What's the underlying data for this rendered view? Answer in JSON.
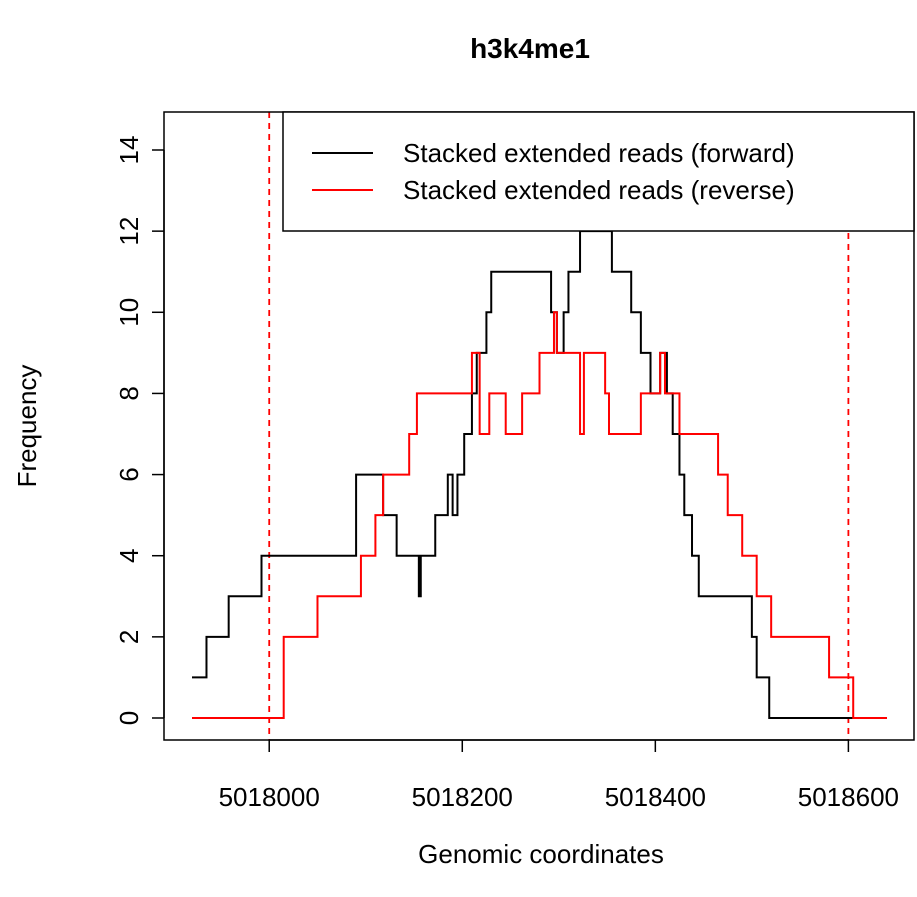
{
  "chart_data": {
    "type": "line",
    "title": "h3k4me1",
    "xlabel": "Genomic coordinates",
    "ylabel": "Frequency",
    "xlim": [
      5017920,
      5018640
    ],
    "ylim": [
      0,
      14
    ],
    "x_ticks": [
      5018000,
      5018200,
      5018400,
      5018600
    ],
    "x_tick_labels": [
      "5018000",
      "5018200",
      "5018400",
      "5018600"
    ],
    "y_ticks": [
      0,
      2,
      4,
      6,
      8,
      10,
      12,
      14
    ],
    "y_tick_labels": [
      "0",
      "2",
      "4",
      "6",
      "8",
      "10",
      "12",
      "14"
    ],
    "grid": false,
    "legend_position": "top-right",
    "vlines": [
      {
        "x": 5018000,
        "color": "#ff0000",
        "style": "dashed"
      },
      {
        "x": 5018600,
        "color": "#ff0000",
        "style": "dashed"
      }
    ],
    "series": [
      {
        "name": "Stacked extended reads (forward)",
        "color": "#000000",
        "step": true,
        "points": [
          [
            5017920,
            1
          ],
          [
            5017935,
            2
          ],
          [
            5017958,
            3
          ],
          [
            5017992,
            4
          ],
          [
            5018090,
            6
          ],
          [
            5018118,
            5
          ],
          [
            5018132,
            4
          ],
          [
            5018155,
            3
          ],
          [
            5018157,
            4
          ],
          [
            5018172,
            5
          ],
          [
            5018185,
            6
          ],
          [
            5018190,
            5
          ],
          [
            5018195,
            6
          ],
          [
            5018202,
            7
          ],
          [
            5018210,
            8
          ],
          [
            5018215,
            9
          ],
          [
            5018225,
            10
          ],
          [
            5018230,
            11
          ],
          [
            5018292,
            10
          ],
          [
            5018298,
            9
          ],
          [
            5018305,
            10
          ],
          [
            5018310,
            11
          ],
          [
            5018322,
            12
          ],
          [
            5018355,
            11
          ],
          [
            5018375,
            10
          ],
          [
            5018385,
            9
          ],
          [
            5018395,
            8
          ],
          [
            5018405,
            9
          ],
          [
            5018412,
            8
          ],
          [
            5018418,
            7
          ],
          [
            5018425,
            6
          ],
          [
            5018430,
            5
          ],
          [
            5018438,
            4
          ],
          [
            5018445,
            3
          ],
          [
            5018500,
            2
          ],
          [
            5018505,
            1
          ],
          [
            5018518,
            0
          ],
          [
            5018640,
            0
          ]
        ]
      },
      {
        "name": "Stacked extended reads (reverse)",
        "color": "#ff0000",
        "step": true,
        "points": [
          [
            5017920,
            0
          ],
          [
            5018015,
            2
          ],
          [
            5018050,
            3
          ],
          [
            5018095,
            4
          ],
          [
            5018110,
            5
          ],
          [
            5018118,
            6
          ],
          [
            5018145,
            7
          ],
          [
            5018153,
            8
          ],
          [
            5018210,
            9
          ],
          [
            5018218,
            7
          ],
          [
            5018228,
            8
          ],
          [
            5018245,
            7
          ],
          [
            5018262,
            8
          ],
          [
            5018280,
            9
          ],
          [
            5018295,
            10
          ],
          [
            5018298,
            9
          ],
          [
            5018322,
            7
          ],
          [
            5018326,
            9
          ],
          [
            5018348,
            8
          ],
          [
            5018352,
            7
          ],
          [
            5018385,
            8
          ],
          [
            5018405,
            9
          ],
          [
            5018410,
            8
          ],
          [
            5018425,
            7
          ],
          [
            5018465,
            6
          ],
          [
            5018475,
            5
          ],
          [
            5018490,
            4
          ],
          [
            5018505,
            3
          ],
          [
            5018520,
            2
          ],
          [
            5018580,
            1
          ],
          [
            5018605,
            0
          ],
          [
            5018640,
            0
          ]
        ]
      }
    ]
  }
}
